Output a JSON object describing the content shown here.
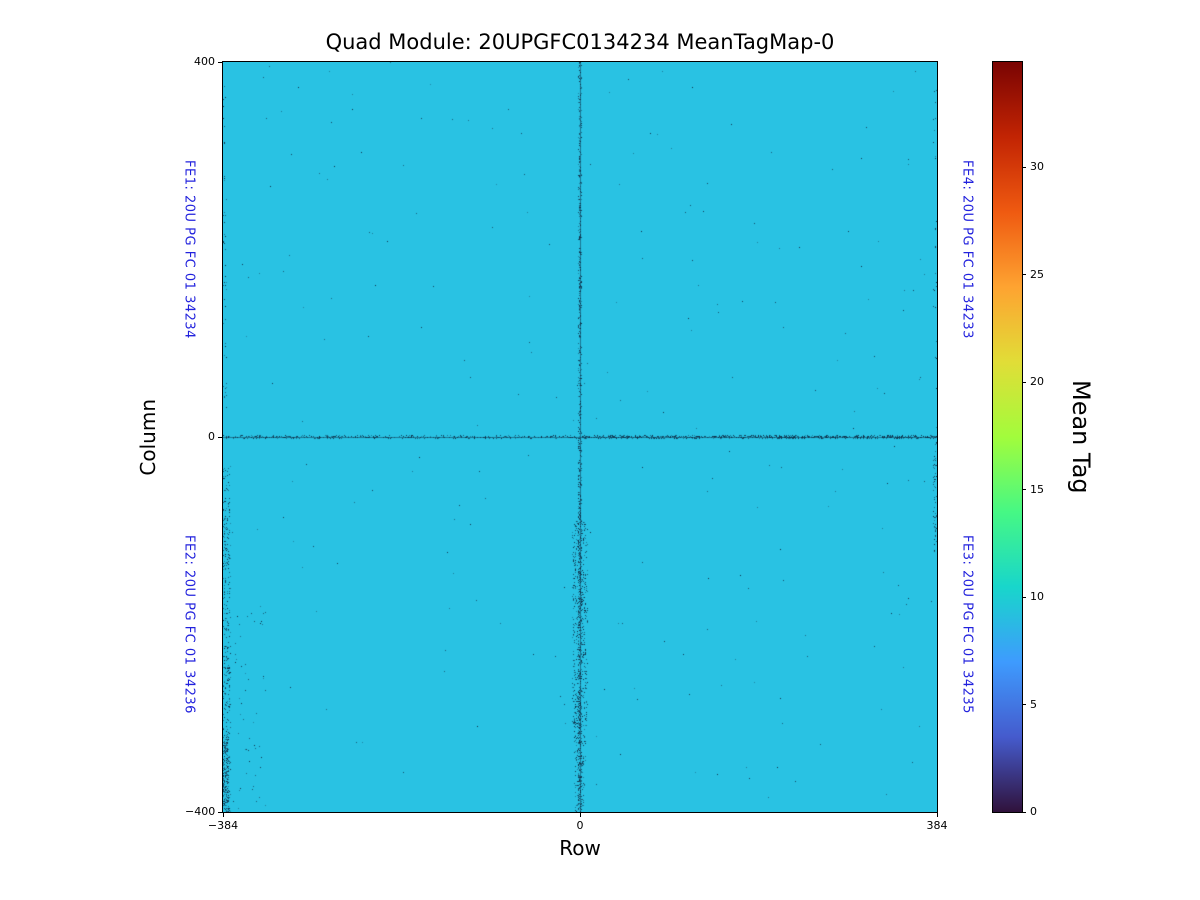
{
  "figure": {
    "background": "#ffffff"
  },
  "chart_data": {
    "type": "heatmap",
    "title": "Quad Module: 20UPGFC0134234 MeanTagMap-0",
    "xlabel": "Row",
    "ylabel": "Column",
    "xlim": [
      -384,
      384
    ],
    "ylim": [
      -400,
      400
    ],
    "xticks": [
      {
        "value": -384,
        "label": "−384"
      },
      {
        "value": 0,
        "label": "0"
      },
      {
        "value": 384,
        "label": "384"
      }
    ],
    "yticks": [
      {
        "value": 400,
        "label": "400"
      },
      {
        "value": 0,
        "label": "0"
      },
      {
        "value": -400,
        "label": "−400"
      }
    ],
    "grid": false,
    "legend": false,
    "background_value": 9.5,
    "background_color": "#29c2e3",
    "speckle_color": "#0d2b45",
    "center_lines": true,
    "seed": 1337,
    "colorbar": {
      "label": "Mean Tag",
      "vmin": 0,
      "vmax": 34.9,
      "ticks": [
        0,
        5,
        10,
        15,
        20,
        25,
        30
      ],
      "colormap": "turbo",
      "stops": [
        {
          "t": 0.0,
          "color": "#30123b"
        },
        {
          "t": 0.1,
          "color": "#455bcd"
        },
        {
          "t": 0.2,
          "color": "#3e9bfe"
        },
        {
          "t": 0.3,
          "color": "#18d6cb"
        },
        {
          "t": 0.4,
          "color": "#46f884"
        },
        {
          "t": 0.5,
          "color": "#a2fc3c"
        },
        {
          "t": 0.6,
          "color": "#e1dd37"
        },
        {
          "t": 0.7,
          "color": "#fea331"
        },
        {
          "t": 0.8,
          "color": "#ef5a11"
        },
        {
          "t": 0.9,
          "color": "#c22403"
        },
        {
          "t": 1.0,
          "color": "#7a0403"
        }
      ]
    },
    "annotations": [
      {
        "id": "FE1",
        "label": "FE1: 20U PG FC 01 34234",
        "side": "left",
        "quadrant": "top",
        "color": "#2222dd"
      },
      {
        "id": "FE2",
        "label": "FE2: 20U PG FC 01 34236",
        "side": "left",
        "quadrant": "bottom",
        "color": "#2222dd"
      },
      {
        "id": "FE4",
        "label": "FE4: 20U PG FC 01 34233",
        "side": "right",
        "quadrant": "top",
        "color": "#2222dd"
      },
      {
        "id": "FE3",
        "label": "FE3: 20U PG FC 01 34235",
        "side": "right",
        "quadrant": "bottom",
        "color": "#2222dd"
      }
    ],
    "noise_clusters": [
      {
        "name": "v-center-top-thin",
        "x": [
          -1.5,
          1.5
        ],
        "y": [
          0,
          400
        ],
        "count": 350
      },
      {
        "name": "v-center-bottom-core",
        "x": [
          -2,
          2
        ],
        "y": [
          -400,
          0
        ],
        "count": 500
      },
      {
        "name": "v-center-bottom-band",
        "x": [
          -8,
          8
        ],
        "y": [
          -310,
          -90
        ],
        "count": 520
      },
      {
        "name": "v-center-bottom-low",
        "x": [
          -6,
          6
        ],
        "y": [
          -400,
          -300
        ],
        "count": 130
      },
      {
        "name": "h-center-full",
        "x": [
          -384,
          384
        ],
        "y": [
          -1.5,
          1.5
        ],
        "count": 700
      },
      {
        "name": "h-center-right-dense",
        "x": [
          0,
          384
        ],
        "y": [
          -1.5,
          1.5
        ],
        "count": 420
      },
      {
        "name": "left-edge-bottom",
        "x": [
          -384,
          -376
        ],
        "y": [
          -400,
          -30
        ],
        "count": 360
      },
      {
        "name": "left-edge-very-bottom",
        "x": [
          -384,
          -378
        ],
        "y": [
          -400,
          -320
        ],
        "count": 180
      },
      {
        "name": "left-inner-specks",
        "x": [
          -372,
          -336
        ],
        "y": [
          -400,
          -180
        ],
        "count": 45
      },
      {
        "name": "left-edge-top-sparse",
        "x": [
          -384,
          -380
        ],
        "y": [
          20,
          400
        ],
        "count": 45
      },
      {
        "name": "right-edge-below-mid",
        "x": [
          380,
          384
        ],
        "y": [
          -130,
          -5
        ],
        "count": 60
      },
      {
        "name": "right-edge-top-sparse",
        "x": [
          380,
          384
        ],
        "y": [
          0,
          400
        ],
        "count": 25
      },
      {
        "name": "random-scatter",
        "x": [
          -384,
          384
        ],
        "y": [
          -400,
          400
        ],
        "count": 240
      }
    ]
  }
}
